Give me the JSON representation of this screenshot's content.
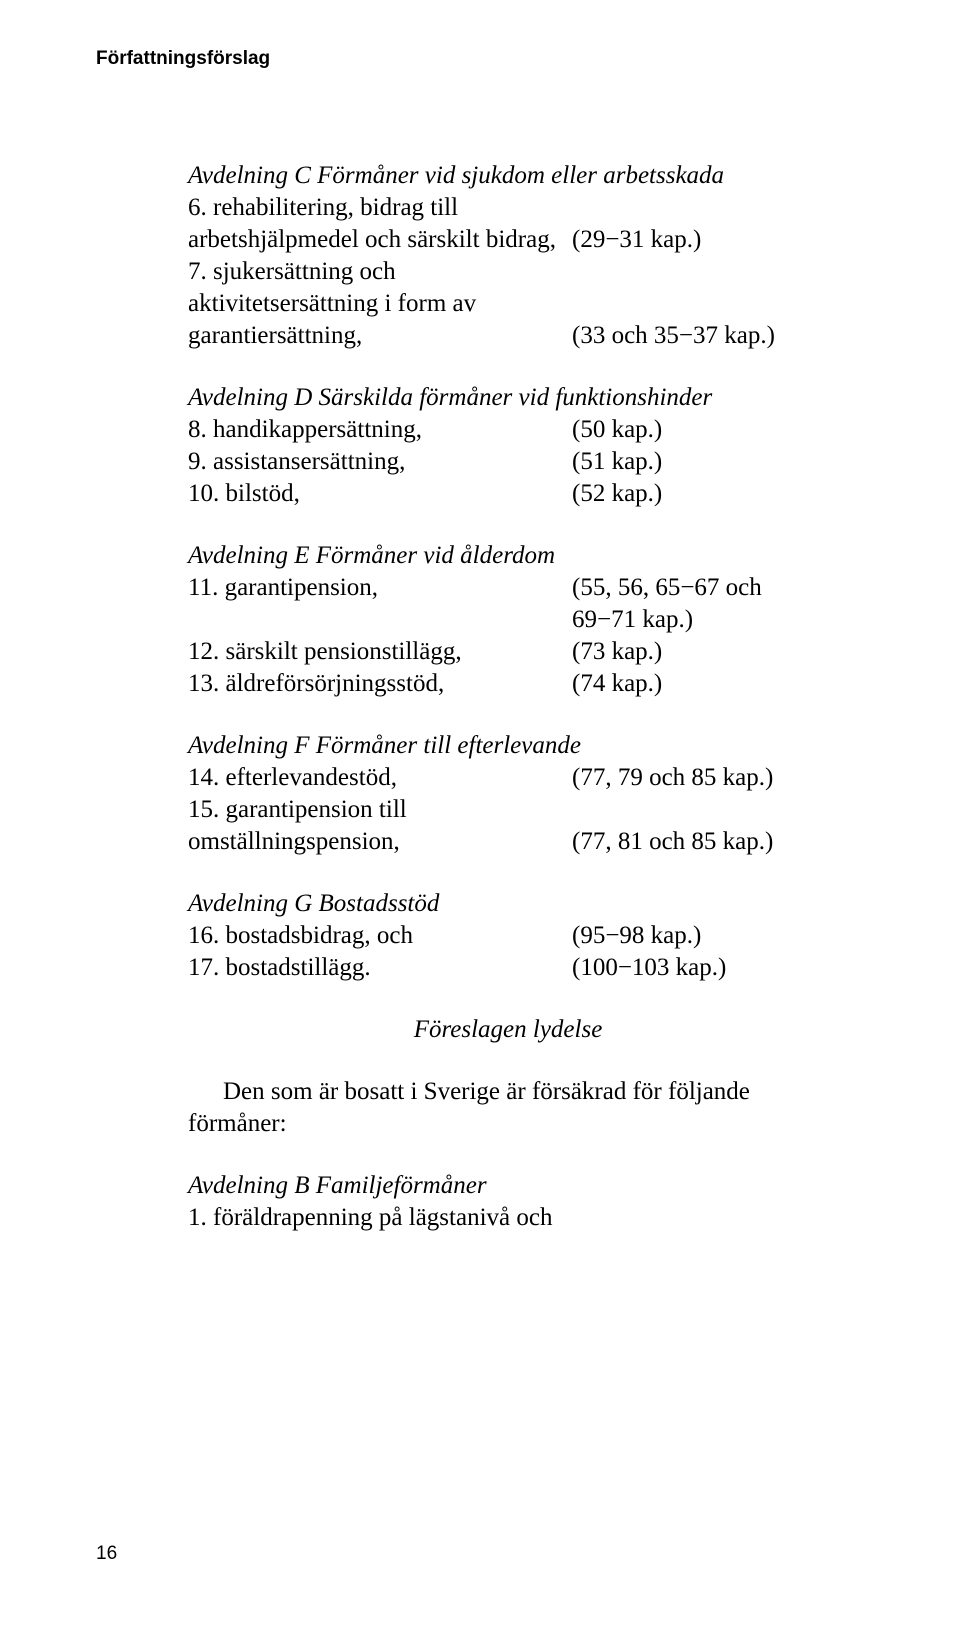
{
  "header": {
    "running": "Författningsförslag"
  },
  "sections": {
    "c": {
      "heading": "Avdelning C Förmåner vid sjukdom eller arbetsskada",
      "item6_left": "6. rehabilitering, bidrag till arbetshjälpmedel och särskilt bidrag,",
      "item6_right": "(29−31 kap.)",
      "item7_left": "7. sjukersättning och aktivitetsersättning i form av garantiersättning,",
      "item7_right": "(33 och 35−37 kap.)"
    },
    "d": {
      "heading": "Avdelning D Särskilda förmåner vid funktionshinder",
      "item8_left": "8. handikappersättning,",
      "item8_right": "(50 kap.)",
      "item9_left": "9. assistansersättning,",
      "item9_right": "(51 kap.)",
      "item10_left": "10. bilstöd,",
      "item10_right": "(52 kap.)"
    },
    "e": {
      "heading": "Avdelning E Förmåner vid ålderdom",
      "item11_left": "11. garantipension,",
      "item11_right_l1": "(55, 56, 65−67 och",
      "item11_right_l2": "69−71 kap.)",
      "item12_left": "12. särskilt pensionstillägg,",
      "item12_right": "(73 kap.)",
      "item13_left": "13. äldreförsörjningsstöd,",
      "item13_right": "(74 kap.)"
    },
    "f": {
      "heading": "Avdelning F Förmåner till efterlevande",
      "item14_left": "14. efterlevandestöd,",
      "item14_right": "(77, 79 och 85 kap.)",
      "item15_left": "15. garantipension till omställningspension,",
      "item15_right": "(77, 81 och 85 kap.)"
    },
    "g": {
      "heading": "Avdelning G Bostadsstöd",
      "item16_left": "16. bostadsbidrag, och",
      "item16_right": "(95−98 kap.)",
      "item17_left": "17. bostadstillägg.",
      "item17_right": "(100−103 kap.)"
    },
    "foreslagen": "Föreslagen lydelse",
    "bosatt_para": "Den som är bosatt i Sverige är försäkrad för följande förmåner:",
    "b": {
      "heading": "Avdelning B Familjeförmåner",
      "item1": "1. föräldrapenning på lägstanivå och"
    }
  },
  "footer": {
    "page_number": "16"
  }
}
